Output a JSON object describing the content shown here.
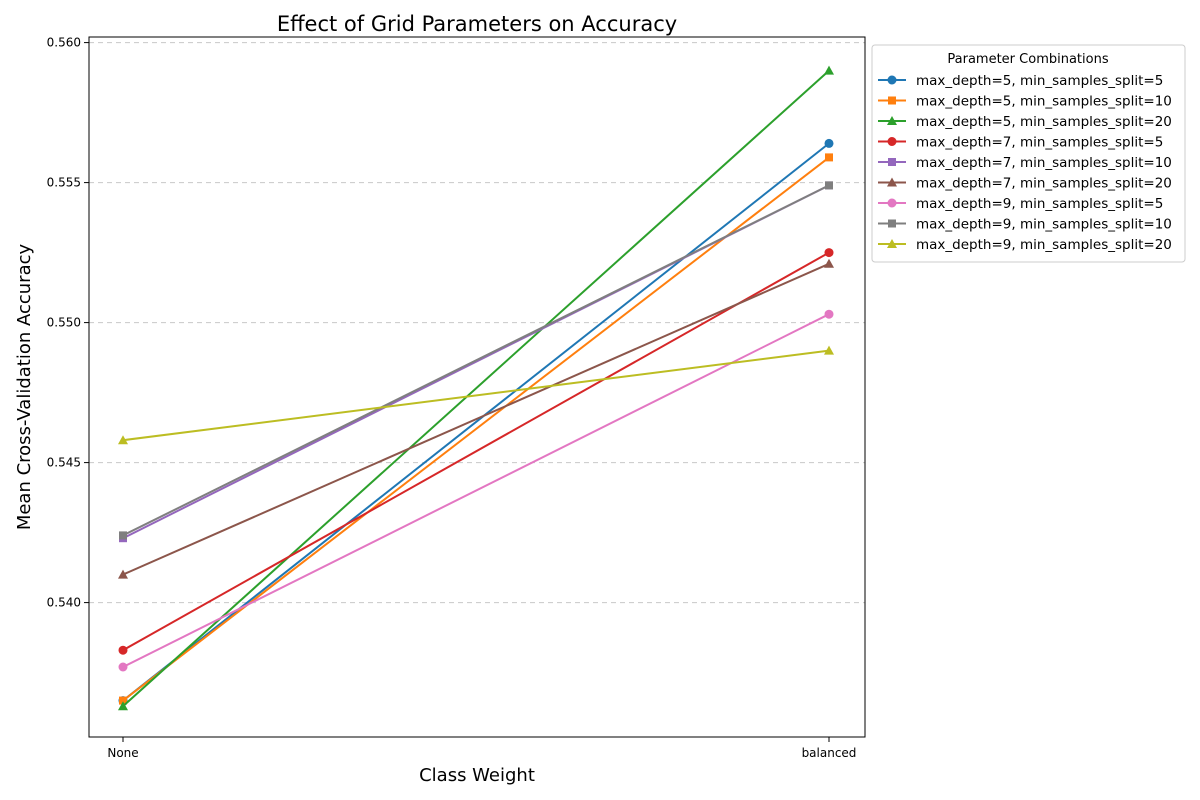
{
  "chart_data": {
    "type": "line",
    "title": "Effect of Grid Parameters on Accuracy",
    "xlabel": "Class Weight",
    "ylabel": "Mean Cross-Validation Accuracy",
    "categories": [
      "None",
      "balanced"
    ],
    "ylim": [
      0.5352,
      0.5602
    ],
    "yticks": [
      "0.540",
      "0.545",
      "0.550",
      "0.555",
      "0.560"
    ],
    "yticks_values": [
      0.54,
      0.545,
      0.55,
      0.555,
      0.56
    ],
    "grid": "horizontal-dashed",
    "legend": {
      "title": "Parameter Combinations",
      "placement": "outside-top-right"
    },
    "series": [
      {
        "name": "max_depth=5, min_samples_split=5",
        "values": [
          0.5365,
          0.5564
        ],
        "color": "#1f77b4",
        "marker": "circle"
      },
      {
        "name": "max_depth=5, min_samples_split=10",
        "values": [
          0.5365,
          0.5559
        ],
        "color": "#ff7f0e",
        "marker": "square"
      },
      {
        "name": "max_depth=5, min_samples_split=20",
        "values": [
          0.5363,
          0.559
        ],
        "color": "#2ca02c",
        "marker": "triangle"
      },
      {
        "name": "max_depth=7, min_samples_split=5",
        "values": [
          0.5383,
          0.5525
        ],
        "color": "#d62728",
        "marker": "circle"
      },
      {
        "name": "max_depth=7, min_samples_split=10",
        "values": [
          0.5423,
          0.5549
        ],
        "color": "#9467bd",
        "marker": "square"
      },
      {
        "name": "max_depth=7, min_samples_split=20",
        "values": [
          0.541,
          0.5521
        ],
        "color": "#8c564b",
        "marker": "triangle"
      },
      {
        "name": "max_depth=9, min_samples_split=5",
        "values": [
          0.5377,
          0.5503
        ],
        "color": "#e377c2",
        "marker": "circle"
      },
      {
        "name": "max_depth=9, min_samples_split=10",
        "values": [
          0.5424,
          0.5549
        ],
        "color": "#7f7f7f",
        "marker": "square"
      },
      {
        "name": "max_depth=9, min_samples_split=20",
        "values": [
          0.5458,
          0.549
        ],
        "color": "#bcbd22",
        "marker": "triangle"
      }
    ]
  }
}
